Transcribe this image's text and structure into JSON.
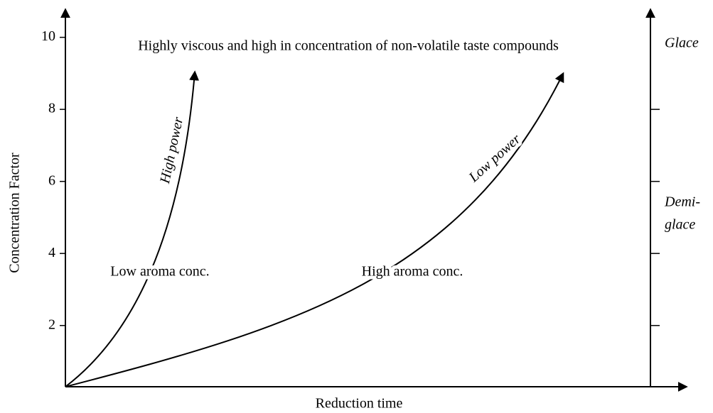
{
  "axes": {
    "x_label": "Reduction time",
    "y_label": "Concentration Factor",
    "ylim": [
      0.3,
      10.8
    ],
    "yticks": [
      2,
      4,
      6,
      8,
      10
    ]
  },
  "annotations": {
    "top": "Highly viscous and high in concentration of non-volatile taste compounds",
    "low_aroma": "Low aroma conc.",
    "high_aroma": "High aroma conc."
  },
  "curves": {
    "high": "High power",
    "low": "Low power"
  },
  "right_labels": {
    "glace": "Glace",
    "demi": [
      "Demi-",
      "glace"
    ]
  }
}
